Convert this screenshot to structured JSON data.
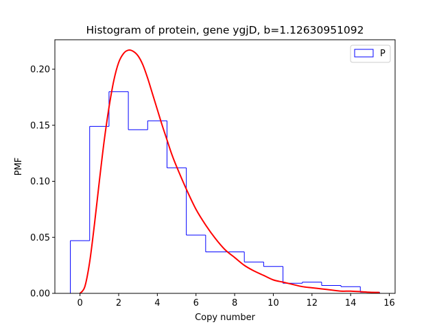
{
  "chart_data": {
    "type": "histogram",
    "title": "Histogram of protein, gene ygjD, b=1.12630951092",
    "xlabel": "Copy number",
    "ylabel": "PMF",
    "xlim": [
      -1.3,
      16.3
    ],
    "ylim": [
      0.0,
      0.2263
    ],
    "xticks": [
      0,
      2,
      4,
      6,
      8,
      10,
      12,
      14,
      16
    ],
    "yticks": [
      0.0,
      0.05,
      0.1,
      0.15,
      0.2
    ],
    "ytick_labels": [
      "0.00",
      "0.05",
      "0.10",
      "0.15",
      "0.20"
    ],
    "grid": false,
    "legend_position": "top-right",
    "series": [
      {
        "name": "P",
        "kind": "step-histogram",
        "color": "#0000ff",
        "bin_edges": [
          -0.5,
          0.5,
          1.5,
          2.5,
          3.5,
          4.5,
          5.5,
          6.5,
          7.5,
          8.5,
          9.5,
          10.5,
          11.5,
          12.5,
          13.5,
          14.5,
          15.5
        ],
        "values": [
          0.047,
          0.149,
          0.18,
          0.146,
          0.154,
          0.112,
          0.052,
          0.037,
          0.037,
          0.028,
          0.024,
          0.009,
          0.01,
          0.007,
          0.006,
          0.001
        ]
      },
      {
        "kind": "curve",
        "color": "#ff0000",
        "x": [
          0.0,
          0.25,
          0.5,
          0.75,
          1.0,
          1.25,
          1.5,
          1.75,
          2.0,
          2.25,
          2.5,
          2.75,
          3.0,
          3.25,
          3.5,
          3.75,
          4.0,
          4.25,
          4.5,
          4.75,
          5.0,
          5.5,
          6.0,
          6.5,
          7.0,
          7.5,
          8.0,
          8.5,
          9.0,
          9.5,
          10.0,
          10.5,
          11.0,
          11.5,
          12.0,
          12.5,
          13.0,
          13.5,
          14.0,
          14.5,
          15.0,
          15.5
        ],
        "y": [
          0.0,
          0.006,
          0.028,
          0.062,
          0.1,
          0.136,
          0.166,
          0.19,
          0.206,
          0.214,
          0.217,
          0.216,
          0.212,
          0.204,
          0.192,
          0.178,
          0.164,
          0.15,
          0.137,
          0.124,
          0.113,
          0.093,
          0.075,
          0.061,
          0.049,
          0.039,
          0.032,
          0.025,
          0.02,
          0.016,
          0.012,
          0.01,
          0.008,
          0.006,
          0.005,
          0.004,
          0.003,
          0.002,
          0.002,
          0.0015,
          0.001,
          0.0008
        ]
      }
    ]
  }
}
